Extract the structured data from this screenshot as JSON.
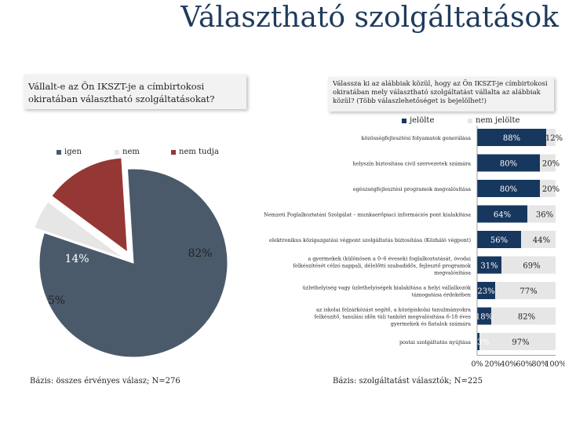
{
  "title": "Választható szolgáltatások",
  "left": {
    "question": "Vállalt-e az Ön IKSZT-je a címbirtokosi okiratában választható szolgáltatásokat?",
    "base": "Bázis: összes érvényes válasz; N=276"
  },
  "right": {
    "question": "Válassza ki az alábbiak közül, hogy az Ön IKSZT-je címbirtokosi okiratában mely választható szolgáltatást vállalta az alábbiak közül? (Több válaszlehetőséget is bejelölhet!)",
    "base": "Bázis: szolgáltatást választók; N=225"
  },
  "colors": {
    "title": "#1f3b5c",
    "navy": "#17375e",
    "light_gray": "#e6e6e6",
    "red": "#953735",
    "slate": "#4a5a6a"
  },
  "chart_data": [
    {
      "type": "pie",
      "legend": [
        "igen",
        "nem",
        "nem tudja"
      ],
      "legend_position": "top",
      "slices": [
        {
          "label": "igen",
          "value": 82,
          "value_label": "82%",
          "color": "#4a5a6a"
        },
        {
          "label": "nem",
          "value": 5,
          "value_label": "5%",
          "color": "#e6e6e6"
        },
        {
          "label": "nem tudja",
          "value": 14,
          "value_label": "14%",
          "color": "#953735"
        }
      ]
    },
    {
      "type": "bar",
      "orientation": "horizontal",
      "stacked": true,
      "legend": [
        "jelölte",
        "nem jelölte"
      ],
      "legend_position": "top",
      "categories": [
        "közösségfejlesztési folyamatok generálása",
        "helyszín biztosítása civil szervezetek számára",
        "egészségfejlesztési programok megvalósítása",
        "Nemzeti Foglalkoztatási Szolgálat – munkaerőpiaci információs pont kialakítása",
        "elektronikus közigazgatási végpont szolgáltatás biztosítása (Közháló végpont)",
        "a gyermekek (különösen a 0–6 évesek) foglalkoztatását, óvodai felkészítését célzó nappali, délelőtti szabadidős, fejlesztő programok megvalósítása",
        "üzlethelyiség vagy üzlethelyiségek kialakítása a helyi vállalkozók támogatása érdekében",
        "az iskolai felzárkózást segítő, a középiskolai tanulmányokra felkészítő, tanulási időn túli tanköri megvalósítása 6-18 éves gyermekek és fiatalok számára",
        "postai szolgáltatás nyújtása"
      ],
      "series": [
        {
          "name": "jelölte",
          "values": [
            88,
            80,
            80,
            64,
            56,
            31,
            23,
            18,
            3
          ],
          "labels": [
            "88%",
            "80%",
            "80%",
            "64%",
            "56%",
            "31%",
            "23%",
            "18%",
            "3%"
          ],
          "color": "#17375e"
        },
        {
          "name": "nem jelölte",
          "values": [
            12,
            20,
            20,
            36,
            44,
            69,
            77,
            82,
            97
          ],
          "labels": [
            "12%",
            "20%",
            "20%",
            "36%",
            "44%",
            "69%",
            "77%",
            "82%",
            "97%"
          ],
          "color": "#e6e6e6"
        }
      ],
      "xlim": [
        0,
        100
      ],
      "xticks": [
        "0%",
        "20%",
        "40%",
        "60%",
        "80%",
        "100%"
      ]
    }
  ]
}
